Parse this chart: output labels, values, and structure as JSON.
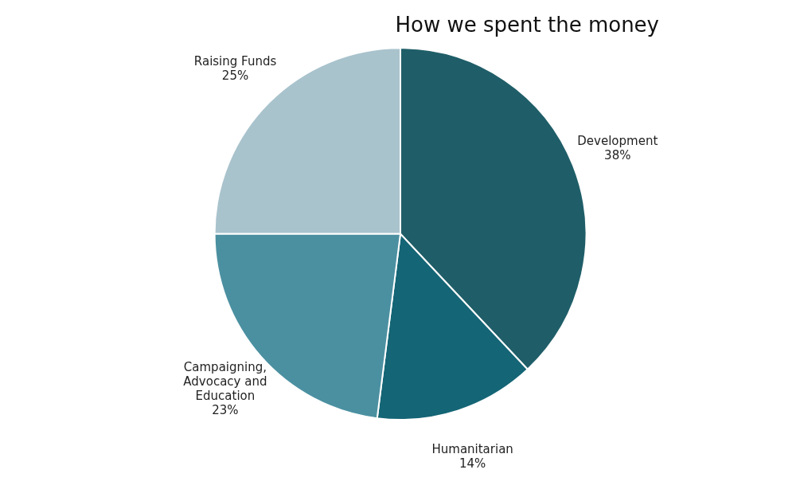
{
  "chart_data": {
    "type": "pie",
    "title": "How we spent the money",
    "categories": [
      "Development",
      "Humanitarian",
      "Campaigning, Advocacy and Education",
      "Raising Funds"
    ],
    "values": [
      38,
      14,
      23,
      25
    ],
    "colors": [
      "#1f5e68",
      "#146575",
      "#4b90a1",
      "#a9c3cd"
    ],
    "value_labels": [
      "38%",
      "14%",
      "23%",
      "25%"
    ],
    "legend": false
  }
}
